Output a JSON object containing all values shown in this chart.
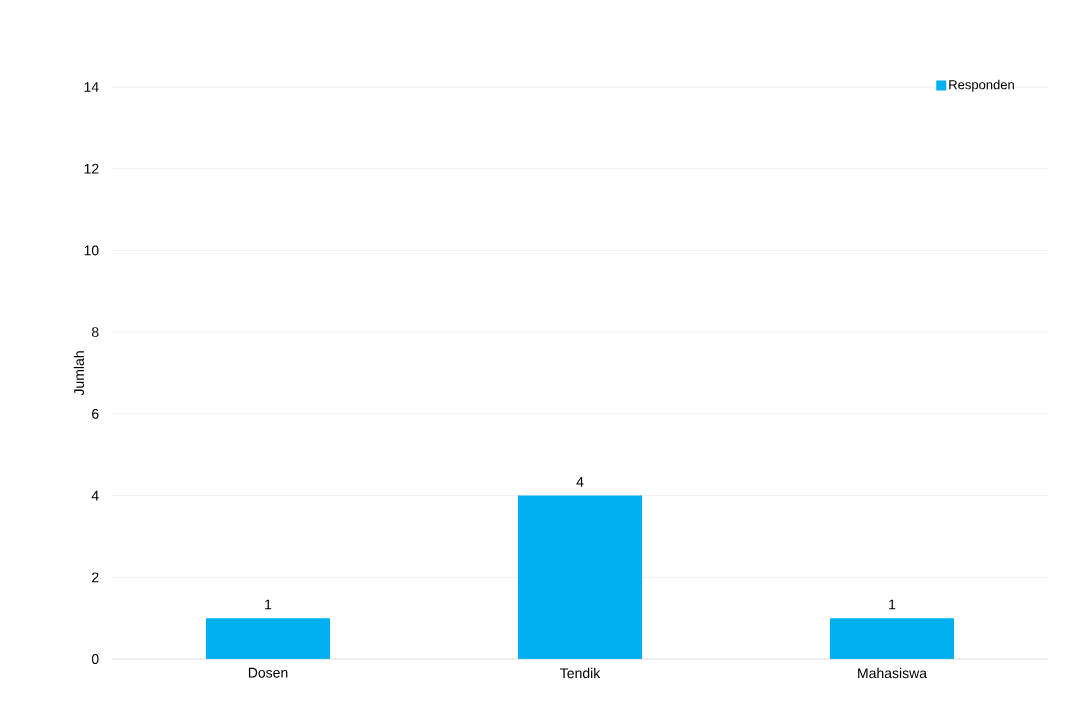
{
  "chart_data": {
    "type": "bar",
    "ylabel": "Jumlah",
    "categories": [
      "Dosen",
      "Tendik",
      "Mahasiswa"
    ],
    "series": [
      {
        "name": "Responden",
        "color": "#00b0f0",
        "values": [
          1,
          4,
          1
        ]
      }
    ],
    "ylim": [
      0,
      14
    ],
    "yticks": [
      0,
      2,
      4,
      6,
      8,
      10,
      12,
      14
    ],
    "grid": "y",
    "legend": "top right",
    "data_labels": true
  }
}
